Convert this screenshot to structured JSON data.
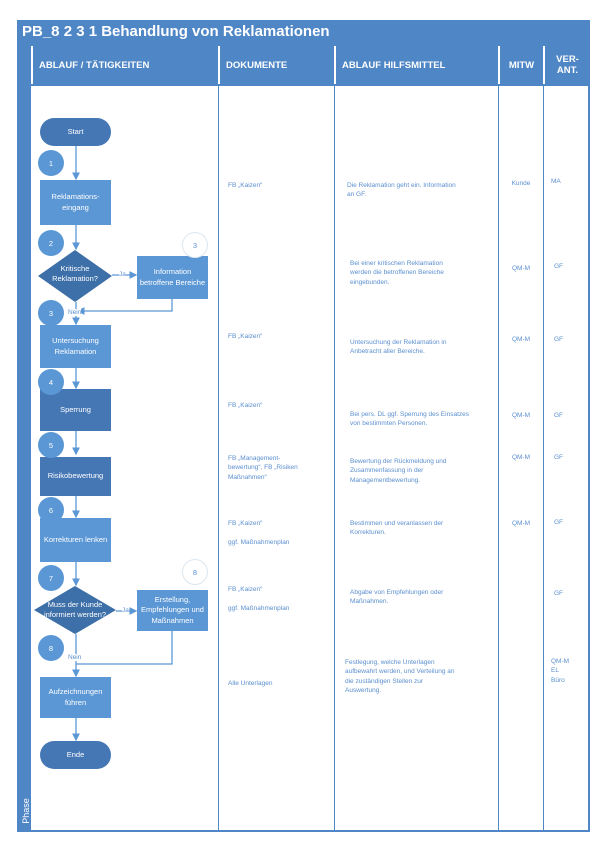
{
  "title": "PB_8 2 3 1 Behandlung von Reklamationen",
  "columns": [
    "ABLAUF / TÄTIGKEITEN",
    "DOKUMENTE",
    "ABLAUF HILFSMITTEL",
    "MITW",
    "VER-\nANT."
  ],
  "phase_label": "Phase",
  "colors": {
    "header": "#4f86c6",
    "box": "#5b97d5",
    "box_dark": "#4677b5",
    "diamond": "#3d6fa8",
    "text": "#5b8fcf"
  },
  "flow": {
    "start": "Start",
    "end": "Ende",
    "steps": [
      "Reklamations-\neingang",
      "Untersuchung\nReklamation",
      "Sperrung",
      "Risikobewertung",
      "Korrekturen lenken",
      "Aufzeichnungen\nführen"
    ],
    "decisions": [
      "Kritische\nReklamation?",
      "Muss der Kunde\ninformiert werden?"
    ],
    "side_boxes": [
      "Information\nbetroffene Bereiche",
      "Erstellung,\nEmpfehlungen und\nMaßnahmen"
    ],
    "numbers": [
      "1",
      "2",
      "3",
      "4",
      "5",
      "6",
      "7",
      "8"
    ],
    "side_numbers": [
      "3",
      "8"
    ],
    "yes": "Ja",
    "no": "Nein"
  },
  "rows": [
    {
      "doc": "FB „Kaizen“",
      "desc": "Die Reklamation geht ein. Information\nan GF.",
      "mitw": "Kunde",
      "verant": "MA"
    },
    {
      "doc": "",
      "desc": "Bei einer kritischen Reklamation\nwerden die betroffenen Bereiche\neingebunden.",
      "mitw": "QM-M",
      "verant": "GF"
    },
    {
      "doc": "FB „Kaizen“",
      "desc": "Untersuchung der Reklamation in\nAnbetracht aller Bereiche.",
      "mitw": "QM-M",
      "verant": "GF"
    },
    {
      "doc": "FB „Kaizen“",
      "desc": "Bei pers. DL ggf. Sperrung des Einsatzes\nvon bestimmten Personen.",
      "mitw": "QM-M",
      "verant": "GF"
    },
    {
      "doc": "FB „Management-\nbewertung“, FB „Risiken\nMaßnahmen“",
      "desc": "Bewertung der Rückmeldung und\nZusammenfassung in der\nManagementbewertung.",
      "mitw": "QM-M",
      "verant": "GF"
    },
    {
      "doc": "FB „Kaizen“\n\nggf. Maßnahmenplan",
      "desc": "Bestimmen und veranlassen der\nKorrekturen.",
      "mitw": "QM-M",
      "verant": "GF"
    },
    {
      "doc": "FB „Kaizen“\n\nggf. Maßnahmenplan",
      "desc": "Abgabe von Empfehlungen oder\nMaßnahmen.",
      "mitw": "",
      "verant": "GF"
    },
    {
      "doc": "Alle Unterlagen",
      "desc": "Festlegung, welche Unterlagen\naufbewahrt werden, und Verteilung an\ndie zuständigen Stellen zur\nAuswertung.",
      "mitw": "",
      "verant": "QM-M\nEL\nBüro"
    }
  ]
}
